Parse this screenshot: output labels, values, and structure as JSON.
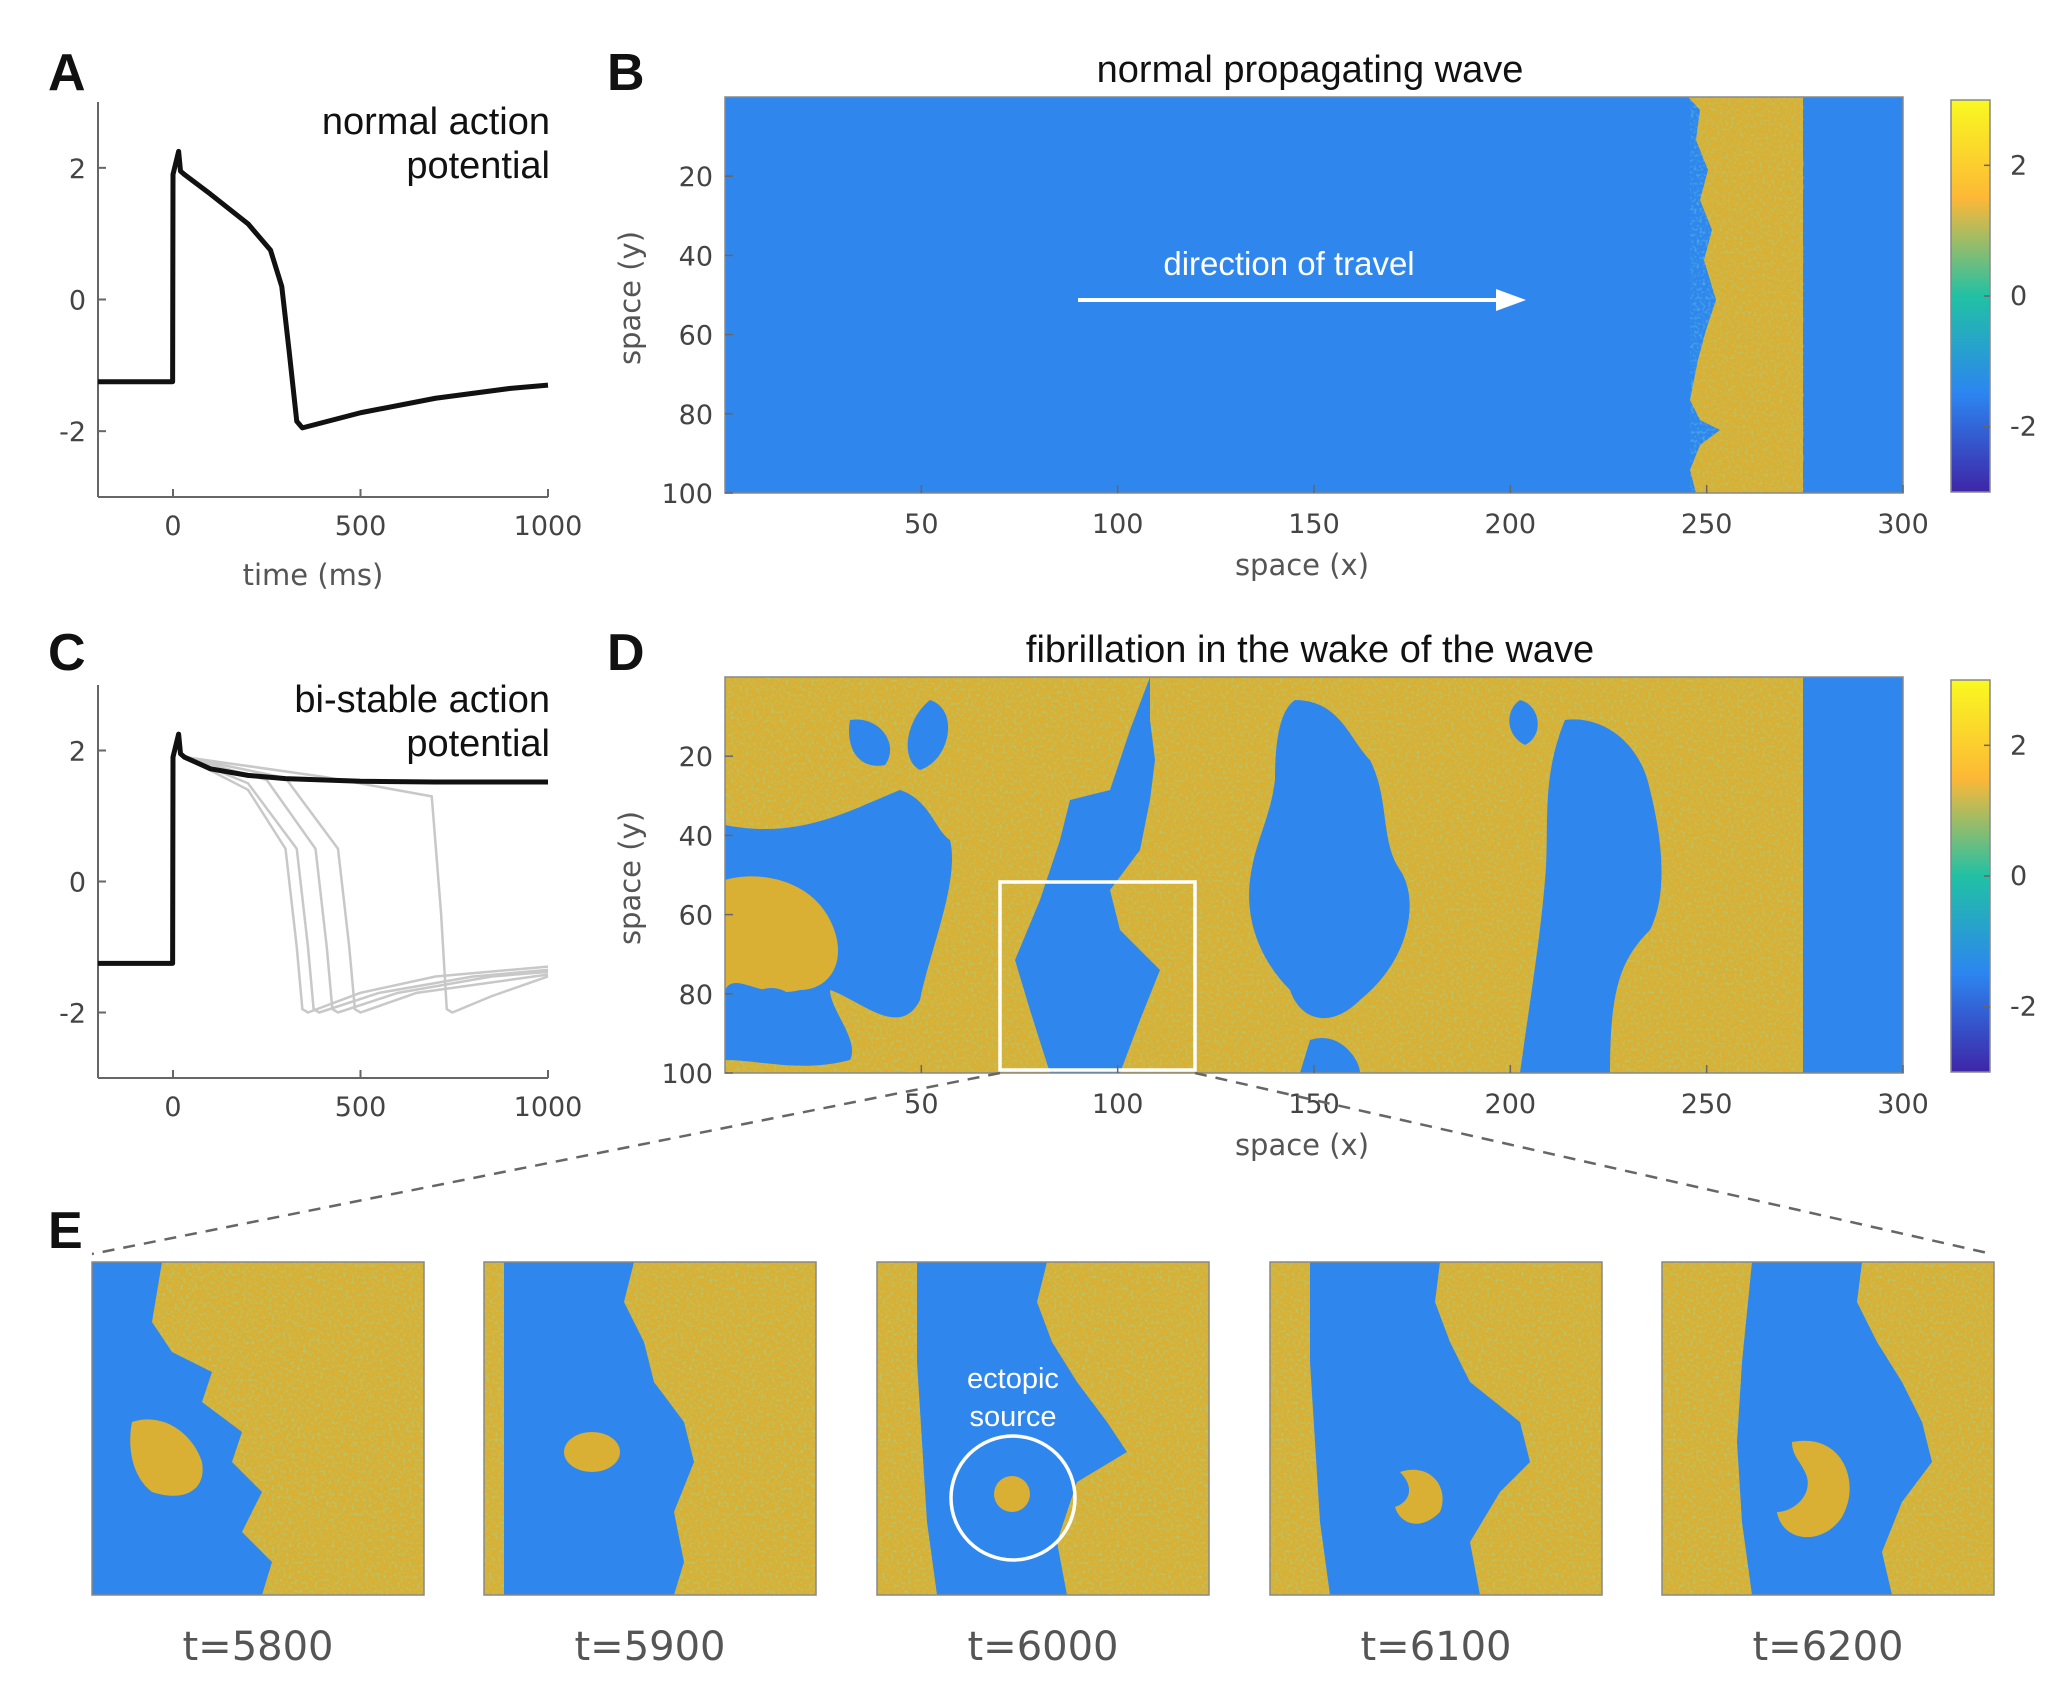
{
  "panels": {
    "A": "A",
    "B": "B",
    "C": "C",
    "D": "D",
    "E": "E"
  },
  "colors": {
    "blue": "#2f87ee",
    "yellow": "#d9b033",
    "cb_top": "#f9f920",
    "cb_upper": "#fdb836",
    "cb_mid": "#21c1a4",
    "cb_lower": "#2c85f0",
    "cb_bottom": "#3e26a8",
    "trace": "#111111",
    "gray_trace": "#c8c8c8"
  },
  "chart_data": [
    {
      "id": "A",
      "type": "line",
      "title": "normal action potential",
      "title_lines": [
        "normal action",
        "potential"
      ],
      "xlabel": "time (ms)",
      "ylabel": "",
      "xlim": [
        -200,
        1000
      ],
      "ylim": [
        -3,
        3
      ],
      "xticks": [
        0,
        500,
        1000
      ],
      "yticks": [
        2,
        0,
        -2
      ],
      "series": [
        {
          "x": [
            -200,
            -1,
            0,
            15,
            20,
            30,
            100,
            200,
            260,
            290,
            310,
            330,
            345,
            500,
            700,
            900,
            1000
          ],
          "y": [
            -1.25,
            -1.25,
            1.9,
            2.25,
            1.95,
            1.9,
            1.6,
            1.15,
            0.75,
            0.2,
            -0.8,
            -1.85,
            -1.95,
            -1.72,
            -1.5,
            -1.35,
            -1.3
          ]
        }
      ]
    },
    {
      "id": "B",
      "type": "heatmap",
      "title": "normal propagating wave",
      "xlabel": "space (x)",
      "ylabel": "space (y)",
      "xlim": [
        0,
        300
      ],
      "ylim": [
        0,
        100
      ],
      "xticks": [
        50,
        100,
        150,
        200,
        250,
        300
      ],
      "yticks": [
        20,
        40,
        60,
        80,
        100
      ],
      "colorbar": {
        "ticks": [
          2,
          0,
          -2
        ],
        "range": [
          -3,
          3
        ]
      },
      "annotation": "direction of travel",
      "front_x": 245,
      "back_x": 275
    },
    {
      "id": "C",
      "type": "line",
      "title": "bi-stable action potential",
      "title_lines": [
        "bi-stable action",
        "potential"
      ],
      "xlim": [
        -200,
        1000
      ],
      "ylim": [
        -3,
        3
      ],
      "xticks": [
        0,
        500,
        1000
      ],
      "yticks": [
        2,
        0,
        -2
      ],
      "series": [
        {
          "x": [
            -200,
            -1,
            0,
            15,
            20,
            30,
            100,
            200,
            300,
            500,
            700,
            1000
          ],
          "y": [
            -1.25,
            -1.25,
            1.9,
            2.25,
            1.95,
            1.9,
            1.72,
            1.62,
            1.57,
            1.53,
            1.52,
            1.52
          ]
        },
        {
          "x": [
            30,
            200,
            300,
            330,
            345,
            360,
            500,
            700,
            1000
          ],
          "y": [
            1.9,
            1.4,
            0.5,
            -1.0,
            -1.95,
            -2.0,
            -1.7,
            -1.45,
            -1.3
          ]
        },
        {
          "x": [
            30,
            200,
            330,
            360,
            375,
            390,
            550,
            800,
            1000
          ],
          "y": [
            1.9,
            1.5,
            0.5,
            -1.0,
            -1.95,
            -2.0,
            -1.7,
            -1.45,
            -1.35
          ]
        },
        {
          "x": [
            30,
            250,
            380,
            410,
            425,
            440,
            600,
            850,
            1000
          ],
          "y": [
            1.9,
            1.55,
            0.5,
            -1.0,
            -1.95,
            -2.0,
            -1.7,
            -1.45,
            -1.38
          ]
        },
        {
          "x": [
            30,
            300,
            440,
            470,
            485,
            500,
            650,
            900,
            1000
          ],
          "y": [
            1.9,
            1.58,
            0.5,
            -1.0,
            -1.95,
            -2.0,
            -1.7,
            -1.5,
            -1.42
          ]
        },
        {
          "x": [
            30,
            400,
            690,
            715,
            730,
            745,
            850,
            1000
          ],
          "y": [
            1.9,
            1.6,
            1.3,
            -0.5,
            -1.95,
            -2.0,
            -1.75,
            -1.45
          ]
        }
      ]
    },
    {
      "id": "D",
      "type": "heatmap",
      "title": "fibrillation in the wake of the wave",
      "xlabel": "space (x)",
      "ylabel": "space (y)",
      "xlim": [
        0,
        300
      ],
      "ylim": [
        0,
        100
      ],
      "xticks": [
        50,
        100,
        150,
        200,
        250,
        300
      ],
      "yticks": [
        20,
        40,
        60,
        80,
        100
      ],
      "colorbar": {
        "ticks": [
          2,
          0,
          -2
        ],
        "range": [
          -3,
          3
        ]
      },
      "zoom_box": {
        "x": [
          70,
          120
        ],
        "y": [
          52,
          100
        ]
      }
    },
    {
      "id": "E",
      "type": "heatmap",
      "frames": [
        {
          "label": "t=5800"
        },
        {
          "label": "t=5900"
        },
        {
          "label": "t=6000",
          "annotation": "ectopic source",
          "annotation_lines": [
            "ectopic",
            "source"
          ]
        },
        {
          "label": "t=6100"
        },
        {
          "label": "t=6200"
        }
      ]
    }
  ]
}
